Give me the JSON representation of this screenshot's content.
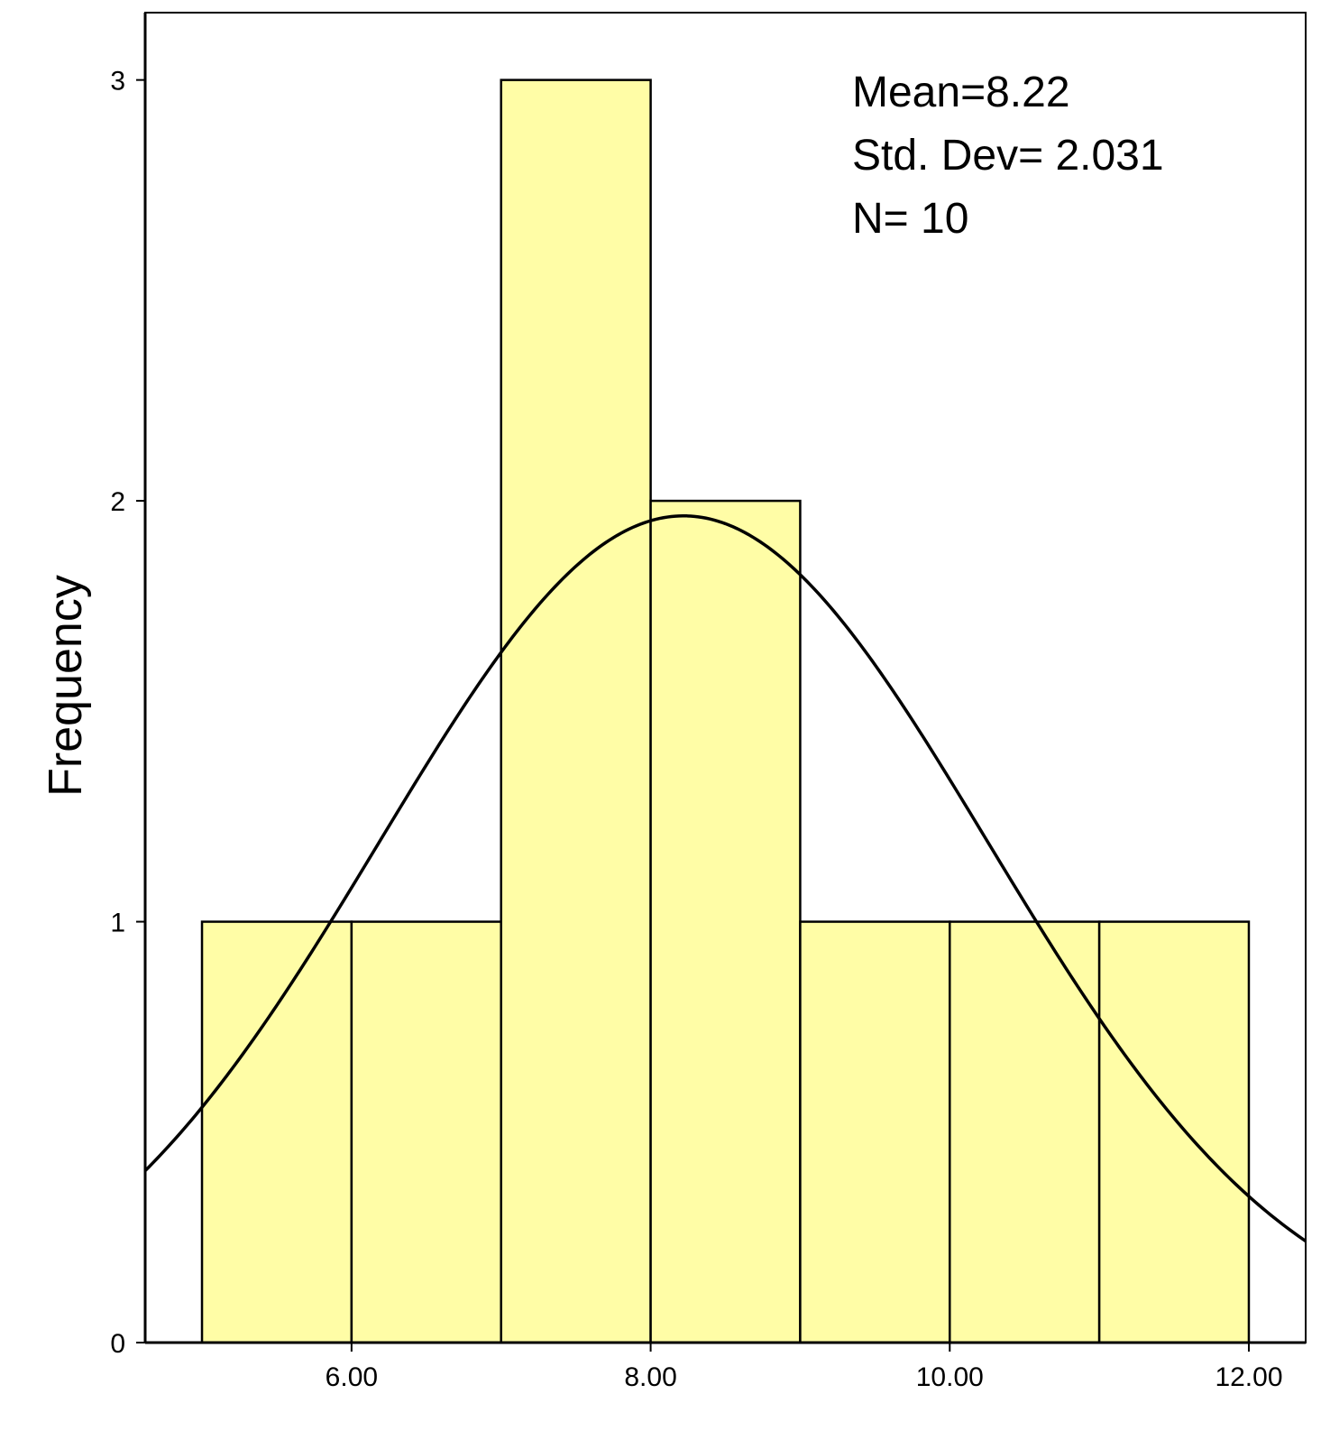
{
  "chart_data": {
    "type": "histogram",
    "title": "",
    "xlabel": "",
    "ylabel": "Frequency",
    "bins": [
      {
        "start": 5,
        "end": 6,
        "count": 1
      },
      {
        "start": 6,
        "end": 7,
        "count": 1
      },
      {
        "start": 7,
        "end": 8,
        "count": 3
      },
      {
        "start": 8,
        "end": 9,
        "count": 2
      },
      {
        "start": 9,
        "end": 10,
        "count": 1
      },
      {
        "start": 10,
        "end": 11,
        "count": 1
      },
      {
        "start": 11,
        "end": 12,
        "count": 1
      }
    ],
    "xlim": [
      4.62,
      12.38
    ],
    "ylim": [
      0,
      3.16
    ],
    "x_ticks": [
      {
        "value": 6,
        "label": "6.00"
      },
      {
        "value": 8,
        "label": "8.00"
      },
      {
        "value": 10,
        "label": "10.00"
      },
      {
        "value": 12,
        "label": "12.00"
      }
    ],
    "y_ticks": [
      {
        "value": 0,
        "label": "0"
      },
      {
        "value": 1,
        "label": "1"
      },
      {
        "value": 2,
        "label": "2"
      },
      {
        "value": 3,
        "label": "3"
      }
    ],
    "normal_curve": {
      "mean": 8.22,
      "std": 2.031,
      "n": 10,
      "bin_width": 1
    },
    "stats_text": [
      "Mean=8.22",
      "Std. Dev= 2.031",
      "N= 10"
    ],
    "bar_color": "#fffda6",
    "line_color": "#000000",
    "grid": false
  }
}
